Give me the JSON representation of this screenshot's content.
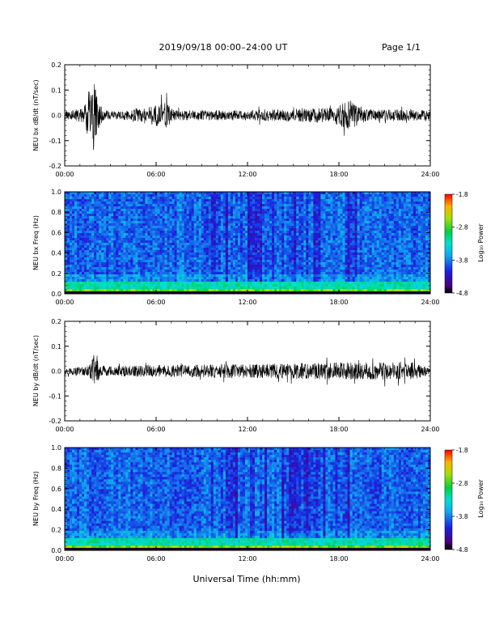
{
  "header": {
    "title": "2019/09/18  00:00–24:00 UT",
    "page": "Page 1/1"
  },
  "footer": {
    "xlabel": "Universal Time (hh:mm)"
  },
  "chart_data": [
    {
      "type": "line",
      "ylabel": "NEU bx dB/dt (nT/sec)",
      "xlim": [
        0,
        24
      ],
      "ylim": [
        -0.2,
        0.2
      ],
      "yticks": [
        "0.2",
        "0.1",
        "0.0",
        "-0.1",
        "-0.2"
      ],
      "xticks": [
        "00:00",
        "06:00",
        "12:00",
        "18:00",
        "24:00"
      ],
      "envelope": [
        {
          "t": 0.0,
          "amp": 0.015
        },
        {
          "t": 1.3,
          "amp": 0.03
        },
        {
          "t": 1.6,
          "amp": 0.11
        },
        {
          "t": 1.9,
          "amp": 0.14
        },
        {
          "t": 2.1,
          "amp": 0.09
        },
        {
          "t": 2.5,
          "amp": 0.02
        },
        {
          "t": 3.5,
          "amp": 0.015
        },
        {
          "t": 6.7,
          "amp": 0.05
        },
        {
          "t": 7.2,
          "amp": 0.02
        },
        {
          "t": 12.0,
          "amp": 0.02
        },
        {
          "t": 17.5,
          "amp": 0.03
        },
        {
          "t": 18.8,
          "amp": 0.06
        },
        {
          "t": 19.5,
          "amp": 0.025
        },
        {
          "t": 24.0,
          "amp": 0.02
        }
      ]
    },
    {
      "type": "heatmap",
      "ylabel": "NEU bx Freq (Hz)",
      "xlim": [
        0,
        24
      ],
      "ylim": [
        0.0,
        1.0
      ],
      "yticks": [
        "1.0",
        "0.8",
        "0.6",
        "0.4",
        "0.2",
        "0.0"
      ],
      "xticks": [
        "00:00",
        "06:00",
        "12:00",
        "18:00",
        "24:00"
      ],
      "colorbar": {
        "label": "Log₁₀ Power",
        "ticks": [
          "-1.8",
          "-2.8",
          "-3.8",
          "-4.8"
        ],
        "range": [
          -4.8,
          -1.8
        ]
      }
    },
    {
      "type": "line",
      "ylabel": "NEU by dB/dt (nT/sec)",
      "xlim": [
        0,
        24
      ],
      "ylim": [
        -0.2,
        0.2
      ],
      "yticks": [
        "0.2",
        "0.1",
        "0.0",
        "-0.1",
        "-0.2"
      ],
      "xticks": [
        "00:00",
        "06:00",
        "12:00",
        "18:00",
        "24:00"
      ],
      "envelope": [
        {
          "t": 0.0,
          "amp": 0.012
        },
        {
          "t": 1.5,
          "amp": 0.02
        },
        {
          "t": 2.0,
          "amp": 0.06
        },
        {
          "t": 2.4,
          "amp": 0.02
        },
        {
          "t": 6.8,
          "amp": 0.025
        },
        {
          "t": 13.8,
          "amp": 0.03
        },
        {
          "t": 16.7,
          "amp": 0.035
        },
        {
          "t": 22.8,
          "amp": 0.035
        },
        {
          "t": 24.0,
          "amp": 0.015
        }
      ]
    },
    {
      "type": "heatmap",
      "ylabel": "NEU by Freq (Hz)",
      "xlim": [
        0,
        24
      ],
      "ylim": [
        0.0,
        1.0
      ],
      "yticks": [
        "1.0",
        "0.8",
        "0.6",
        "0.4",
        "0.2",
        "0.0"
      ],
      "xticks": [
        "00:00",
        "06:00",
        "12:00",
        "18:00",
        "24:00"
      ],
      "colorbar": {
        "label": "Log₁₀ Power",
        "ticks": [
          "-1.8",
          "-2.8",
          "-3.8",
          "-4.8"
        ],
        "range": [
          -4.8,
          -1.8
        ]
      }
    }
  ]
}
